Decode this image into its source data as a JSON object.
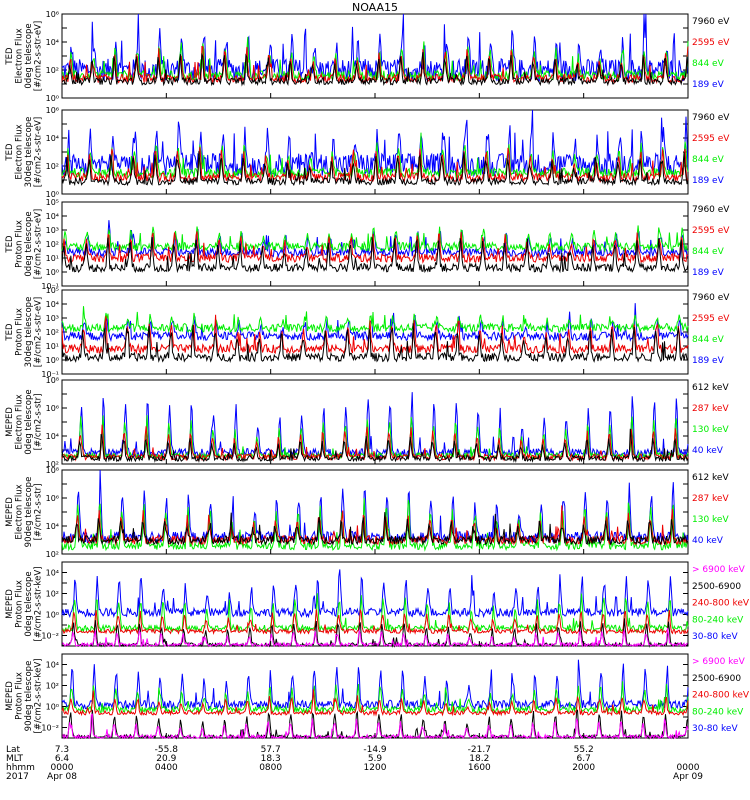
{
  "title": "NOAA15",
  "colors": {
    "blue": "#0000ff",
    "red": "#ee0000",
    "green": "#00ee00",
    "black": "#000000",
    "magenta": "#ff00ff"
  },
  "chart_data": [
    {
      "type": "line",
      "instrument": "TED",
      "ylabel": [
        "TED",
        "Electron Flux",
        "0deg telescope",
        "[#/cm2-s-str-eV]"
      ],
      "y_scale": "log",
      "ylim": [
        1,
        1000000
      ],
      "ticks": [
        0,
        2,
        4,
        6
      ],
      "series": [
        {
          "name": "7960 eV",
          "color": "black",
          "base": 1.2,
          "peak": 3.3,
          "spike": 0.25
        },
        {
          "name": "2595 eV",
          "color": "red",
          "base": 1.4,
          "peak": 3.6,
          "spike": 0.3
        },
        {
          "name": "844 eV",
          "color": "green",
          "base": 1.6,
          "peak": 4.0,
          "spike": 0.35
        },
        {
          "name": "189 eV",
          "color": "blue",
          "base": 2.0,
          "peak": 5.0,
          "spike": 0.8
        }
      ]
    },
    {
      "type": "line",
      "instrument": "TED",
      "ylabel": [
        "TED",
        "Electron Flux",
        "30deg telescope",
        "[#/cm2-s-str-eV]"
      ],
      "y_scale": "log",
      "ylim": [
        1,
        1000000
      ],
      "ticks": [
        0,
        2,
        4,
        6
      ],
      "series": [
        {
          "name": "7960 eV",
          "color": "black",
          "base": 0.9,
          "peak": 3.0,
          "spike": 0.25
        },
        {
          "name": "2595 eV",
          "color": "red",
          "base": 1.2,
          "peak": 3.4,
          "spike": 0.3
        },
        {
          "name": "844 eV",
          "color": "green",
          "base": 1.5,
          "peak": 3.8,
          "spike": 0.35
        },
        {
          "name": "189 eV",
          "color": "blue",
          "base": 2.1,
          "peak": 5.1,
          "spike": 0.8
        }
      ]
    },
    {
      "type": "line",
      "instrument": "TED",
      "ylabel": [
        "TED",
        "Proton Flux",
        "0deg telescope",
        "[#/cm2-s-str-eV]"
      ],
      "y_scale": "log",
      "ylim": [
        0.1,
        100000
      ],
      "ticks": [
        -1,
        0,
        1,
        2,
        3,
        4,
        5
      ],
      "series": [
        {
          "name": "7960 eV",
          "color": "black",
          "base": 0.3,
          "peak": 2.6,
          "spike": 0.3
        },
        {
          "name": "2595 eV",
          "color": "red",
          "base": 1.0,
          "peak": 2.9,
          "spike": 0.3
        },
        {
          "name": "844 eV",
          "color": "green",
          "base": 1.8,
          "peak": 3.2,
          "spike": 0.3
        },
        {
          "name": "189 eV",
          "color": "blue",
          "base": 1.4,
          "peak": 3.0,
          "spike": 0.3
        }
      ]
    },
    {
      "type": "line",
      "instrument": "TED",
      "ylabel": [
        "TED",
        "Proton Flux",
        "30deg telescope",
        "[#/cm2-s-str-eV]"
      ],
      "y_scale": "log",
      "ylim": [
        0.1,
        100000
      ],
      "ticks": [
        -1,
        0,
        1,
        2,
        3,
        4,
        5
      ],
      "series": [
        {
          "name": "7960 eV",
          "color": "black",
          "base": 0.2,
          "peak": 2.5,
          "spike": 0.3
        },
        {
          "name": "2595 eV",
          "color": "red",
          "base": 0.8,
          "peak": 2.8,
          "spike": 0.3
        },
        {
          "name": "844 eV",
          "color": "green",
          "base": 2.3,
          "peak": 3.2,
          "spike": 0.3
        },
        {
          "name": "189 eV",
          "color": "blue",
          "base": 1.7,
          "peak": 3.1,
          "spike": 0.3
        }
      ]
    },
    {
      "type": "line",
      "instrument": "MEPED",
      "ylabel": [
        "MEPED",
        "Electron Flux",
        "0deg telescope",
        "[#/cm2-s-str]"
      ],
      "y_scale": "log",
      "ylim": [
        100,
        100000000
      ],
      "ticks": [
        2,
        4,
        6,
        8
      ],
      "series": [
        {
          "name": "612 keV",
          "color": "black",
          "base": 2.4,
          "peak": 4.0,
          "spike": 0.2
        },
        {
          "name": "287 keV",
          "color": "red",
          "base": 2.5,
          "peak": 4.7,
          "spike": 0.2
        },
        {
          "name": "130 keV",
          "color": "green",
          "base": 2.6,
          "peak": 5.5,
          "spike": 0.2
        },
        {
          "name": "40 keV",
          "color": "blue",
          "base": 2.8,
          "peak": 7.0,
          "spike": 0.3
        }
      ]
    },
    {
      "type": "line",
      "instrument": "MEPED",
      "ylabel": [
        "MEPED",
        "Electron Flux",
        "90deg telescope",
        "[#/cm2-s-str]"
      ],
      "y_scale": "log",
      "ylim": [
        100,
        100000000
      ],
      "ticks": [
        2,
        4,
        6,
        8
      ],
      "series": [
        {
          "name": "612 keV",
          "color": "black",
          "base": 3.0,
          "peak": 4.5,
          "spike": 0.3
        },
        {
          "name": "287 keV",
          "color": "red",
          "base": 3.0,
          "peak": 5.0,
          "spike": 0.3
        },
        {
          "name": "130 keV",
          "color": "green",
          "base": 2.6,
          "peak": 5.8,
          "spike": 0.3
        },
        {
          "name": "40 keV",
          "color": "blue",
          "base": 3.2,
          "peak": 7.0,
          "spike": 0.4
        }
      ]
    },
    {
      "type": "line",
      "instrument": "MEPED",
      "ylabel": [
        "MEPED",
        "Proton Flux",
        "0deg telescope",
        "[#/cm2-s-str-keV]"
      ],
      "y_scale": "log",
      "ylim": [
        0.001,
        100000
      ],
      "ticks": [
        -2,
        0,
        2,
        4
      ],
      "series": [
        {
          "name": "> 6900 keV",
          "color": "magenta",
          "base": -2.9,
          "peak": -1.5,
          "spike": 0.2
        },
        {
          "name": "2500-6900",
          "color": "black",
          "base": -2.9,
          "peak": -0.5,
          "spike": 0.2
        },
        {
          "name": "240-800 keV",
          "color": "red",
          "base": -1.6,
          "peak": 0.5,
          "spike": 0.2
        },
        {
          "name": "80-240 keV",
          "color": "green",
          "base": -1.3,
          "peak": 2.0,
          "spike": 0.3
        },
        {
          "name": "30-80 keV",
          "color": "blue",
          "base": 0.2,
          "peak": 3.8,
          "spike": 0.4
        }
      ]
    },
    {
      "type": "line",
      "instrument": "MEPED",
      "ylabel": [
        "MEPED",
        "Proton Flux",
        "90deg telescope",
        "[#/cm2-s-str-keV]"
      ],
      "y_scale": "log",
      "ylim": [
        0.001,
        100000
      ],
      "ticks": [
        -2,
        0,
        2,
        4
      ],
      "series": [
        {
          "name": "> 6900 keV",
          "color": "magenta",
          "base": -2.9,
          "peak": -1.2,
          "spike": 0.2
        },
        {
          "name": "2500-6900",
          "color": "black",
          "base": -2.9,
          "peak": -0.2,
          "spike": 0.2
        },
        {
          "name": "240-800 keV",
          "color": "red",
          "base": -0.6,
          "peak": 1.0,
          "spike": 0.2
        },
        {
          "name": "80-240 keV",
          "color": "green",
          "base": -0.3,
          "peak": 2.2,
          "spike": 0.3
        },
        {
          "name": "30-80 keV",
          "color": "blue",
          "base": 0.2,
          "peak": 4.0,
          "spike": 0.4
        }
      ]
    }
  ],
  "x_axis": {
    "row_labels": [
      "Lat",
      "MLT",
      "hhmm",
      "2017"
    ],
    "ticks": [
      {
        "lat": "7.3",
        "mlt": "6.4",
        "hhmm": "0000",
        "date": "Apr 08"
      },
      {
        "lat": "-55.8",
        "mlt": "20.9",
        "hhmm": "0400",
        "date": ""
      },
      {
        "lat": "57.7",
        "mlt": "18.3",
        "hhmm": "0800",
        "date": ""
      },
      {
        "lat": "-14.9",
        "mlt": "5.9",
        "hhmm": "1200",
        "date": ""
      },
      {
        "lat": "-21.7",
        "mlt": "18.2",
        "hhmm": "1600",
        "date": ""
      },
      {
        "lat": "55.2",
        "mlt": "6.7",
        "hhmm": "2000",
        "date": ""
      },
      {
        "lat": "",
        "mlt": "",
        "hhmm": "0000",
        "date": "Apr 09"
      }
    ],
    "range_hours": [
      0,
      24
    ]
  }
}
